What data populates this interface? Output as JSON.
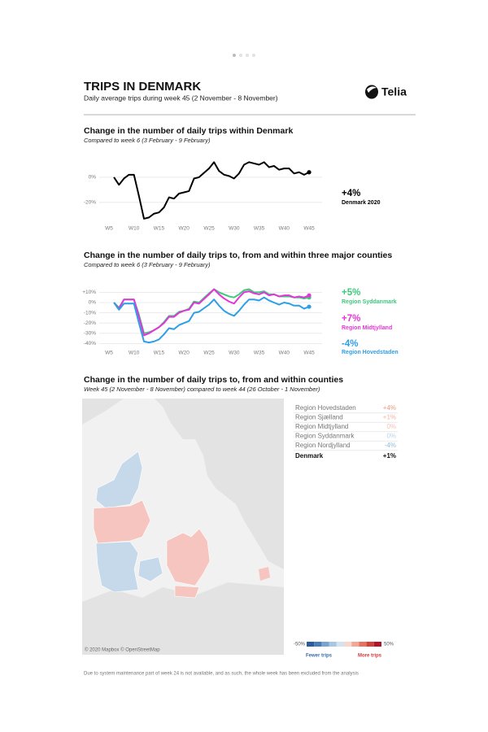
{
  "header": {
    "title": "TRIPS IN DENMARK",
    "subtitle": "Daily average trips during week 45 (2 November - 8 November)",
    "brand": "Telia"
  },
  "chart_data": [
    {
      "type": "line",
      "title": "Change in the number of daily trips within Denmark",
      "subtitle": "Compared to week 6 (3 February - 9 February)",
      "x": [
        6,
        7,
        8,
        9,
        10,
        11,
        12,
        13,
        14,
        15,
        16,
        17,
        18,
        19,
        20,
        21,
        22,
        23,
        25,
        26,
        27,
        28,
        29,
        30,
        31,
        32,
        33,
        34,
        35,
        36,
        37,
        38,
        39,
        40,
        41,
        42,
        43,
        44,
        45
      ],
      "xlim": [
        4,
        46
      ],
      "xticks": [
        {
          "value": 5,
          "label": "W5"
        },
        {
          "value": 10,
          "label": "W10"
        },
        {
          "value": 15,
          "label": "W15"
        },
        {
          "value": 20,
          "label": "W20"
        },
        {
          "value": 25,
          "label": "W25"
        },
        {
          "value": 30,
          "label": "W30"
        },
        {
          "value": 35,
          "label": "W35"
        },
        {
          "value": 40,
          "label": "W40"
        },
        {
          "value": 45,
          "label": "W45"
        }
      ],
      "ylim": [
        -35,
        15
      ],
      "yticks": [
        {
          "value": 0,
          "label": "0%"
        },
        {
          "value": -20,
          "label": "-20%"
        }
      ],
      "grid": true,
      "series": [
        {
          "name": "Denmark 2020",
          "end_label": "+4%",
          "color": "#000000",
          "values": [
            0,
            -6,
            -1,
            2,
            2,
            -15,
            -33,
            -32,
            -29,
            -28,
            -24,
            -16,
            -17,
            -13,
            -12,
            -11,
            -1,
            0,
            7,
            12,
            5,
            2,
            1,
            -1,
            3,
            10,
            12,
            11,
            10,
            12,
            8,
            9,
            6,
            7,
            7,
            3,
            4,
            2,
            4
          ]
        }
      ]
    },
    {
      "type": "line",
      "title": "Change in the number of daily trips to, from and within three major counties",
      "subtitle": "Compared to week 6 (3 February - 9 February)",
      "x": [
        6,
        7,
        8,
        9,
        10,
        11,
        12,
        13,
        14,
        15,
        16,
        17,
        18,
        19,
        20,
        21,
        22,
        23,
        25,
        26,
        27,
        28,
        29,
        30,
        31,
        32,
        33,
        34,
        35,
        36,
        37,
        38,
        39,
        40,
        41,
        42,
        43,
        44,
        45
      ],
      "xlim": [
        4,
        46
      ],
      "xticks": [
        {
          "value": 5,
          "label": "W5"
        },
        {
          "value": 10,
          "label": "W10"
        },
        {
          "value": 15,
          "label": "W15"
        },
        {
          "value": 20,
          "label": "W20"
        },
        {
          "value": 25,
          "label": "W25"
        },
        {
          "value": 30,
          "label": "W30"
        },
        {
          "value": 35,
          "label": "W35"
        },
        {
          "value": 40,
          "label": "W40"
        },
        {
          "value": 45,
          "label": "W45"
        }
      ],
      "ylim": [
        -45,
        15
      ],
      "yticks": [
        {
          "value": 10,
          "label": "+10%"
        },
        {
          "value": 0,
          "label": "0%"
        },
        {
          "value": -10,
          "label": "-10%"
        },
        {
          "value": -20,
          "label": "-20%"
        },
        {
          "value": -30,
          "label": "-30%"
        },
        {
          "value": -40,
          "label": "-40%"
        }
      ],
      "grid": true,
      "series": [
        {
          "name": "Region Syddanmark",
          "end_label": "+5%",
          "color": "#3cc97a",
          "values": [
            0,
            -5,
            3,
            3,
            3,
            -12,
            -30,
            -29,
            -27,
            -24,
            -19,
            -13,
            -13,
            -9,
            -8,
            -6,
            1,
            0,
            9,
            13,
            10,
            8,
            6,
            5,
            8,
            12,
            13,
            10,
            10,
            11,
            8,
            8,
            6,
            6,
            6,
            5,
            5,
            4,
            5
          ]
        },
        {
          "name": "Region Midtjylland",
          "end_label": "+7%",
          "color": "#e534d8",
          "values": [
            0,
            -6,
            3,
            3,
            3,
            -14,
            -32,
            -30,
            -27,
            -24,
            -20,
            -14,
            -14,
            -10,
            -8,
            -7,
            0,
            -1,
            8,
            13,
            8,
            4,
            1,
            -1,
            5,
            10,
            11,
            9,
            8,
            10,
            7,
            8,
            6,
            7,
            7,
            5,
            6,
            5,
            7
          ]
        },
        {
          "name": "Region Hovedstaden",
          "end_label": "-4%",
          "color": "#2e9fe6",
          "values": [
            0,
            -7,
            -1,
            -1,
            -1,
            -20,
            -38,
            -39,
            -38,
            -36,
            -31,
            -25,
            -26,
            -22,
            -20,
            -18,
            -10,
            -9,
            -2,
            3,
            -3,
            -8,
            -11,
            -13,
            -8,
            -2,
            3,
            3,
            2,
            5,
            2,
            0,
            -2,
            0,
            -1,
            -3,
            -3,
            -6,
            -4
          ]
        }
      ]
    }
  ],
  "map_section": {
    "title": "Change in the number of daily trips to, from and within counties",
    "subtitle": "Week 45 (2 November - 8 November) compared to week 44 (26 October - 1 November)",
    "attribution": "© 2020 Mapbox © OpenStreetMap",
    "table": {
      "rows": [
        [
          "Region Hovedstaden",
          "+4%"
        ],
        [
          "Region Sjælland",
          "+1%"
        ],
        [
          "Region Midtjylland",
          "0%"
        ],
        [
          "Region Syddanmark",
          "0%"
        ],
        [
          "Region Nordjylland",
          "-4%"
        ]
      ],
      "value_colors": [
        "#f19a86",
        "#f4b4a4",
        "#f5c3b6",
        "#b7d4ec",
        "#8fbbe0"
      ],
      "total": [
        "Denmark",
        "+1%"
      ]
    },
    "scale": {
      "ticks": [
        {
          "value": -50,
          "label": "-50%"
        },
        {
          "value": 50,
          "label": "50%"
        }
      ],
      "low": "Fewer trips",
      "high": "More trips"
    }
  },
  "footnote": "Due to system maintenance part of week 24 is not available, and as such, the whole week has been excluded from the analysis"
}
